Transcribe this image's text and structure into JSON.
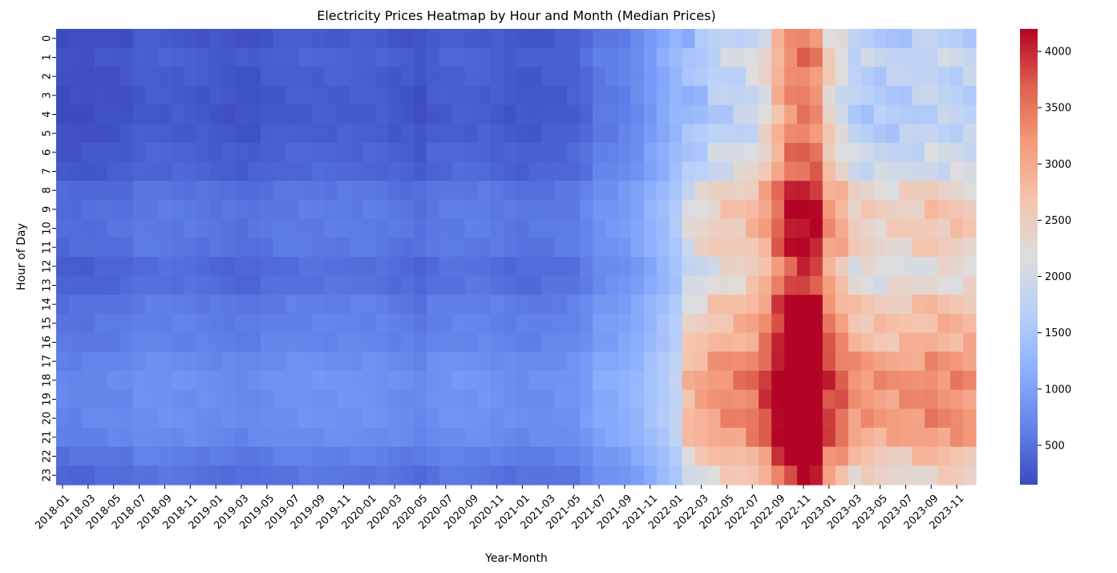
{
  "chart_data": {
    "type": "heatmap",
    "title": "Electricity Prices Heatmap by Hour and Month (Median Prices)",
    "xlabel": "Year-Month",
    "ylabel": "Hour of Day",
    "colormap": "coolwarm",
    "color_range": [
      150,
      4200
    ],
    "colorbar_ticks": [
      500,
      1000,
      1500,
      2000,
      2500,
      3000,
      3500,
      4000
    ],
    "colorbar_tick_labels": [
      "500",
      "1000",
      "1500",
      "2000",
      "2500",
      "3000",
      "3500",
      "4000"
    ],
    "x_months_start": "2018-01",
    "x_months_end": "2023-12",
    "x_tick_labels": [
      "2018-01",
      "2018-03",
      "2018-05",
      "2018-07",
      "2018-09",
      "2018-11",
      "2019-01",
      "2019-03",
      "2019-05",
      "2019-07",
      "2019-09",
      "2019-11",
      "2020-01",
      "2020-03",
      "2020-05",
      "2020-07",
      "2020-09",
      "2020-11",
      "2021-01",
      "2021-03",
      "2021-05",
      "2021-07",
      "2021-09",
      "2021-11",
      "2022-01",
      "2022-03",
      "2022-05",
      "2022-07",
      "2022-09",
      "2022-11",
      "2023-01",
      "2023-03",
      "2023-05",
      "2023-07",
      "2023-09",
      "2023-11"
    ],
    "y_tick_labels": [
      "0",
      "1",
      "2",
      "3",
      "4",
      "5",
      "6",
      "7",
      "8",
      "9",
      "10",
      "11",
      "12",
      "13",
      "14",
      "15",
      "16",
      "17",
      "18",
      "19",
      "20",
      "21",
      "22",
      "23"
    ],
    "month_baseline": [
      300,
      300,
      310,
      330,
      340,
      350,
      420,
      430,
      430,
      420,
      420,
      400,
      380,
      370,
      350,
      360,
      400,
      420,
      440,
      450,
      450,
      450,
      450,
      450,
      450,
      440,
      400,
      380,
      340,
      420,
      450,
      460,
      460,
      460,
      430,
      400,
      390,
      400,
      420,
      440,
      460,
      550,
      700,
      720,
      780,
      880,
      1050,
      1200,
      1400,
      1700,
      1850,
      2050,
      2150,
      2200,
      2350,
      2650,
      3200,
      3700,
      3800,
      3700,
      2800,
      2500,
      2100,
      2050,
      2000,
      2000,
      2050,
      2100,
      2200,
      2150,
      2150,
      2100
    ],
    "hour_adjust": [
      -150,
      -80,
      -120,
      -140,
      -150,
      -120,
      -60,
      -40,
      100,
      150,
      150,
      130,
      30,
      60,
      180,
      220,
      250,
      350,
      400,
      380,
      380,
      330,
      200,
      100
    ]
  }
}
